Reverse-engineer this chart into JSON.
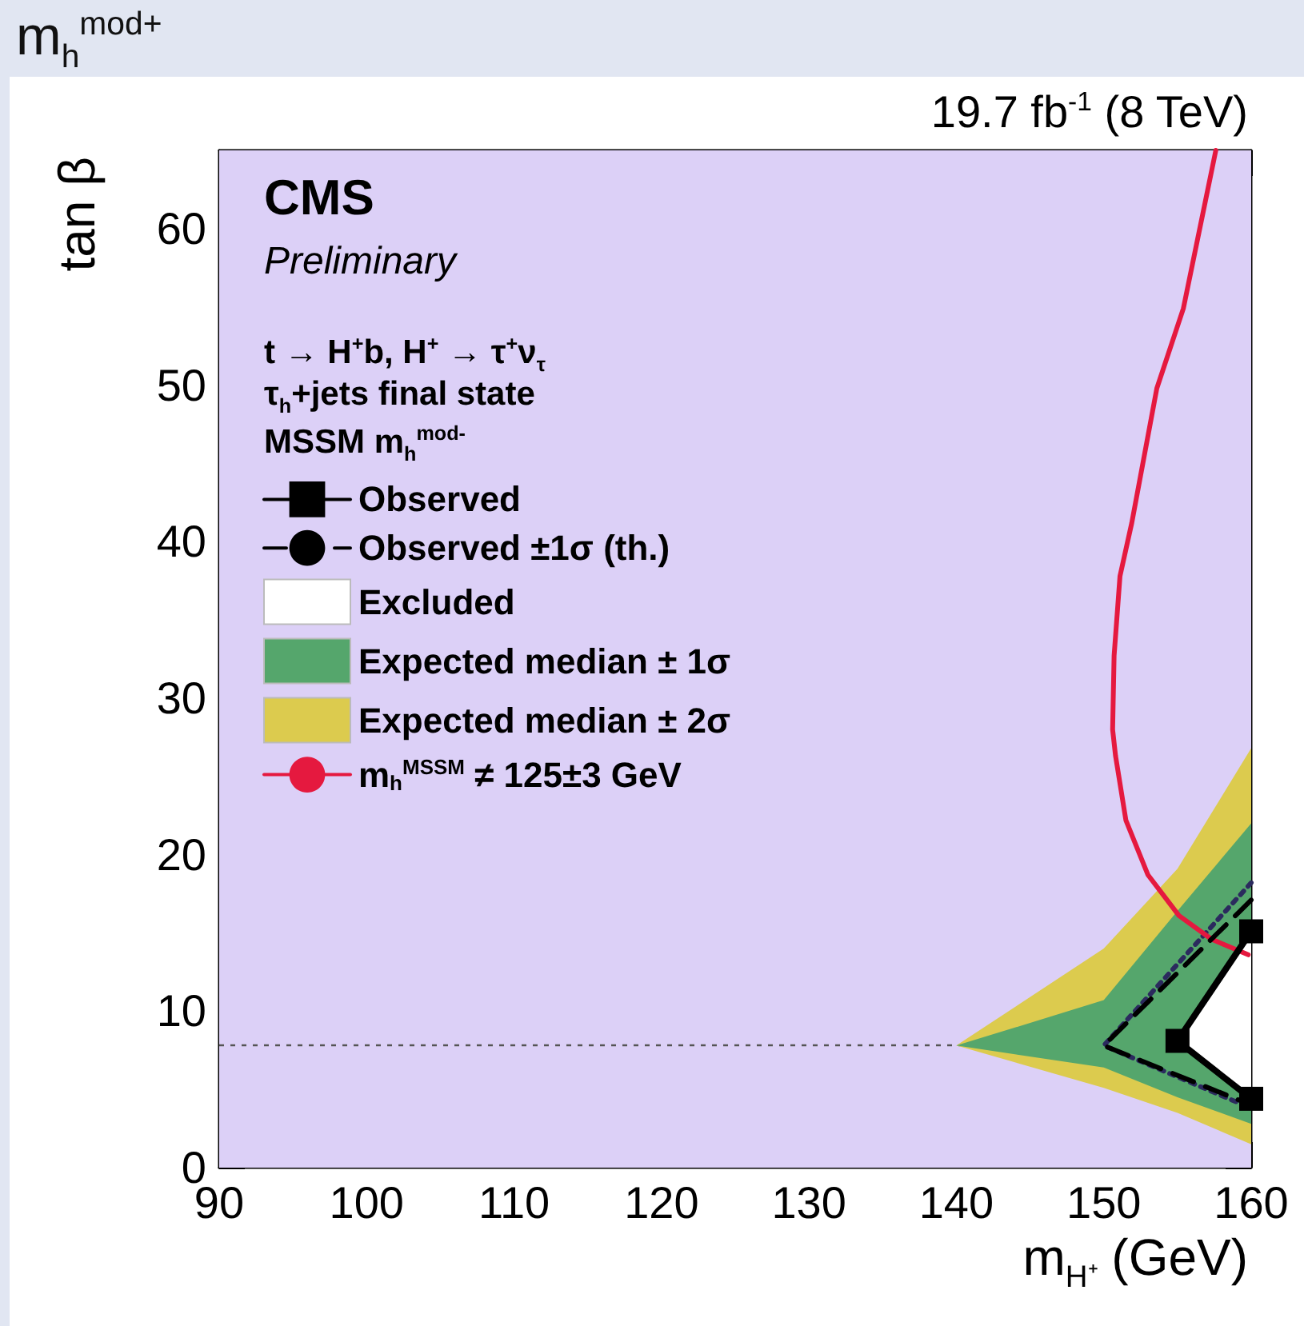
{
  "chart_data": {
    "type": "line",
    "title": "m$_{h}$$^{mod+}$",
    "subtitle": "19.7 fb$^{-1}$ (8 TeV)",
    "xlabel": "m$_{H⁺}$ (GeV)",
    "ylabel": "tan β",
    "annotations": [
      "CMS",
      "Preliminary",
      "t → H$^{+}$b, H$^{+}$ → τ$^{+}$ν$_{τ}$",
      "τ$_{h}$+jets final state",
      "MSSM m$_{h}$$^{mod-}$"
    ],
    "xlim": [
      90,
      160
    ],
    "ylim": [
      0,
      65
    ],
    "xticks": [
      90,
      100,
      110,
      120,
      130,
      140,
      150,
      160
    ],
    "yticks": [
      0,
      10,
      20,
      30,
      40,
      50,
      60
    ],
    "grid": false,
    "legend": "top left",
    "bands": [
      {
        "axis": "x",
        "from": 90,
        "to": 160,
        "color": "#dcd0f7"
      }
    ],
    "ref_lines": [
      {
        "axis": "y",
        "value": 7.8,
        "color": "#555555",
        "line_style": "dotted"
      }
    ],
    "series": [
      {
        "name": "Observed",
        "type": "line",
        "color": "#000000",
        "x": [
          160,
          155,
          160
        ],
        "values": [
          15.1,
          8.1,
          4.4
        ],
        "line_style": "solid",
        "marker": "square"
      },
      {
        "name": "Observed ±1σ (th.)",
        "type": "line",
        "color": "#000000",
        "x": [
          160,
          150,
          160
        ],
        "values": [
          17.1,
          7.8,
          4.0
        ],
        "line_style": "dashed",
        "marker": "none"
      },
      {
        "name": "Excluded",
        "type": "area",
        "color": "#ffffff",
        "x": [
          155,
          160
        ],
        "lower": [
          8.1,
          4.4
        ],
        "upper": [
          8.1,
          15.1
        ],
        "values": [
          null,
          null
        ]
      },
      {
        "name": "Expected median ± 1σ",
        "type": "area",
        "color": "#55a66c",
        "x": [
          140,
          150,
          155,
          160
        ],
        "lower": [
          7.8,
          6.4,
          4.5,
          2.8
        ],
        "upper": [
          7.8,
          10.7,
          16.4,
          22.0
        ],
        "values": [
          null,
          null,
          null,
          null
        ]
      },
      {
        "name": "Expected median ± 2σ",
        "type": "area",
        "color": "#dccb4e",
        "x": [
          140,
          150,
          155,
          160
        ],
        "lower": [
          7.8,
          5.1,
          3.5,
          1.5
        ],
        "upper": [
          7.8,
          14.0,
          19.1,
          26.8
        ],
        "values": [
          null,
          null,
          null,
          null
        ]
      },
      {
        "name": "m$_{h}$$^{MSSM}$ ≠ 125±3 GeV",
        "type": "line",
        "color": "#e5193f",
        "x": [
          157.6,
          155.4,
          153.6,
          151.9,
          151.1,
          150.7,
          150.6,
          150.8,
          151.5,
          153.0,
          155.1,
          157.3,
          159.8
        ],
        "values": [
          65,
          54.9,
          49.8,
          41.2,
          37.8,
          32.7,
          28,
          26.3,
          22.2,
          18.7,
          16.1,
          14.6,
          13.6
        ],
        "line_style": "solid",
        "marker": "none"
      },
      {
        "type": "line",
        "color": "#2b2a5e",
        "x": [
          160,
          150,
          160
        ],
        "values": [
          18.2,
          7.8,
          3.8
        ],
        "line_style": "dotted",
        "marker": "none"
      }
    ]
  }
}
